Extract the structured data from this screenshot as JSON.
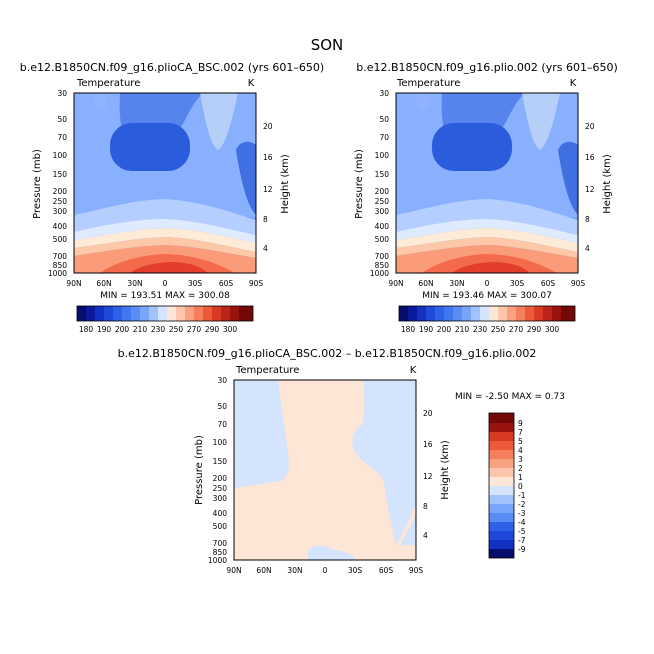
{
  "page": {
    "season": "SON",
    "diff_title": "b.e12.B1850CN.f09_g16.plioCA_BSC.002 – b.e12.B1850CN.f09_g16.plio.002"
  },
  "chart_data": [
    {
      "type": "contour",
      "title": "b.e12.B1850CN.f09_g16.plioCA_BSC.002 (yrs 601–650)",
      "variable": "Temperature",
      "units": "K",
      "ylabel": "Pressure (mb)",
      "y2label": "Height (km)",
      "x_ticks": [
        "90N",
        "60N",
        "30N",
        "0",
        "30S",
        "60S",
        "90S"
      ],
      "p_ticks": [
        "30",
        "50",
        "70",
        "100",
        "150",
        "200",
        "250",
        "300",
        "400",
        "500",
        "700",
        "850",
        "1000"
      ],
      "h_ticks": [
        "4",
        "8",
        "12",
        "16",
        "20"
      ],
      "min_max_text": "MIN = 193.51    MAX = 300.08",
      "colorbar_labels": [
        "180",
        "190",
        "200",
        "210",
        "230",
        "250",
        "270",
        "290",
        "300"
      ]
    },
    {
      "type": "contour",
      "title": "b.e12.B1850CN.f09_g16.plio.002 (yrs 601–650)",
      "variable": "Temperature",
      "units": "K",
      "ylabel": "Pressure (mb)",
      "y2label": "Height (km)",
      "x_ticks": [
        "90N",
        "60N",
        "30N",
        "0",
        "30S",
        "60S",
        "90S"
      ],
      "p_ticks": [
        "30",
        "50",
        "70",
        "100",
        "150",
        "200",
        "250",
        "300",
        "400",
        "500",
        "700",
        "850",
        "1000"
      ],
      "h_ticks": [
        "4",
        "8",
        "12",
        "16",
        "20"
      ],
      "min_max_text": "MIN = 193.46    MAX = 300.07",
      "colorbar_labels": [
        "180",
        "190",
        "200",
        "210",
        "230",
        "250",
        "270",
        "290",
        "300"
      ]
    },
    {
      "type": "contour",
      "title": "b.e12.B1850CN.f09_g16.plioCA_BSC.002 – b.e12.B1850CN.f09_g16.plio.002",
      "variable": "Temperature",
      "units": "K",
      "ylabel": "Pressure (mb)",
      "y2label": "Height (km)",
      "x_ticks": [
        "90N",
        "60N",
        "30N",
        "0",
        "30S",
        "60S",
        "90S"
      ],
      "p_ticks": [
        "30",
        "50",
        "70",
        "100",
        "150",
        "200",
        "250",
        "300",
        "400",
        "500",
        "700",
        "850",
        "1000"
      ],
      "h_ticks": [
        "4",
        "8",
        "12",
        "16",
        "20"
      ],
      "min_max_text": "MIN =   -2.50   MAX =    0.73",
      "colorbar_labels": [
        "9",
        "7",
        "5",
        "4",
        "3",
        "2",
        "1",
        "0",
        "-1",
        "-2",
        "-3",
        "-4",
        "-5",
        "-7",
        "-9"
      ]
    }
  ]
}
